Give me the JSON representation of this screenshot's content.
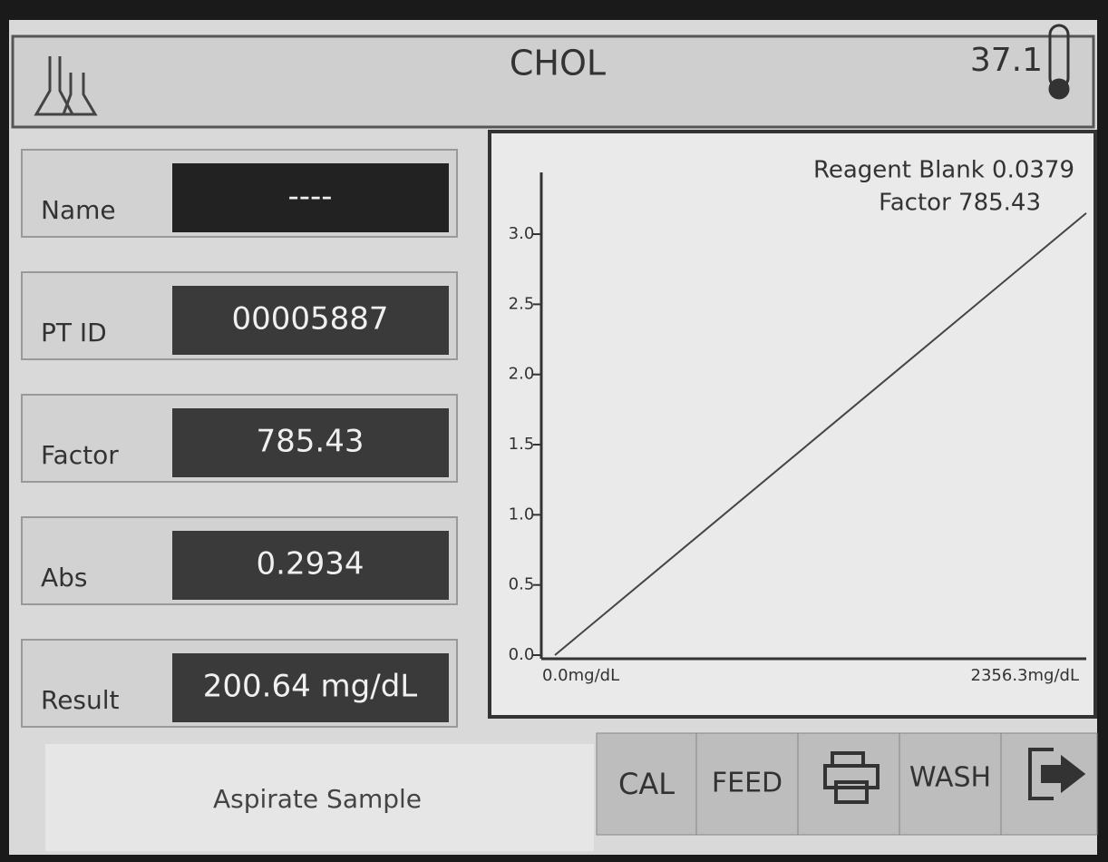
{
  "header": {
    "title": "CHOL",
    "temperature": "37.1"
  },
  "fields": [
    {
      "label": "Name",
      "value": "----"
    },
    {
      "label": "PT ID",
      "value": "00005887"
    },
    {
      "label": "Factor",
      "value": "785.43"
    },
    {
      "label": "Abs",
      "value": "0.2934"
    },
    {
      "label": "Result",
      "value": "200.64 mg/dL"
    }
  ],
  "chart_data": {
    "type": "line",
    "annotations": [
      "Reagent Blank 0.0379",
      "Factor 785.43"
    ],
    "x": [
      0,
      2356.3
    ],
    "values": [
      0,
      3.15
    ],
    "color": "#444444",
    "xlim": [
      0,
      2356.3
    ],
    "xticks": [
      {
        "value": 0,
        "label": "0.0mg/dL"
      },
      {
        "value": 2356.3,
        "label": "2356.3mg/dL"
      }
    ],
    "ylim": [
      0,
      3.44
    ],
    "yticks": [
      {
        "value": 0,
        "label": "0.0"
      },
      0.5,
      {
        "value": 1,
        "label": "1.0"
      },
      1.5,
      {
        "value": 2,
        "label": "2.0"
      },
      2.5,
      {
        "value": 3,
        "label": "3.0"
      }
    ]
  },
  "status": "Aspirate Sample",
  "buttons": [
    "CAL",
    "FEED",
    "WASH"
  ]
}
